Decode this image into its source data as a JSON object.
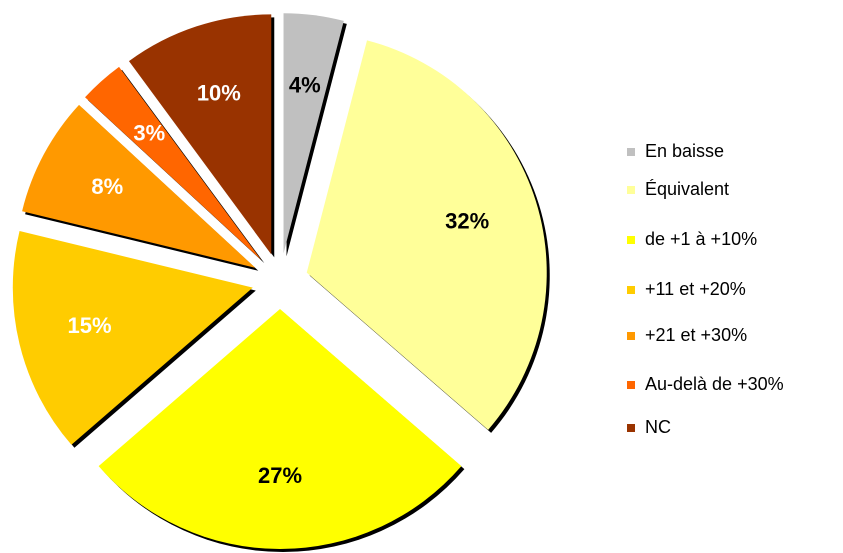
{
  "chart_data": {
    "type": "pie",
    "categories": [
      "En baisse",
      "Équivalent",
      "de +1 à +10%",
      "+11 et +20%",
      "+21 et +30%",
      "Au-delà de +30%",
      "NC"
    ],
    "values": [
      4,
      32,
      27,
      15,
      8,
      3,
      10
    ],
    "value_labels": [
      "4%",
      "32%",
      "27%",
      "15%",
      "8%",
      "3%",
      "10%"
    ],
    "colors": [
      "#c0c0c0",
      "#ffff99",
      "#ffff00",
      "#ffcc00",
      "#ff9900",
      "#ff6600",
      "#993300"
    ],
    "label_colors": [
      "#000000",
      "#000000",
      "#000000",
      "#ffffff",
      "#ffffff",
      "#ffffff",
      "#ffffff"
    ],
    "legend": "right"
  }
}
